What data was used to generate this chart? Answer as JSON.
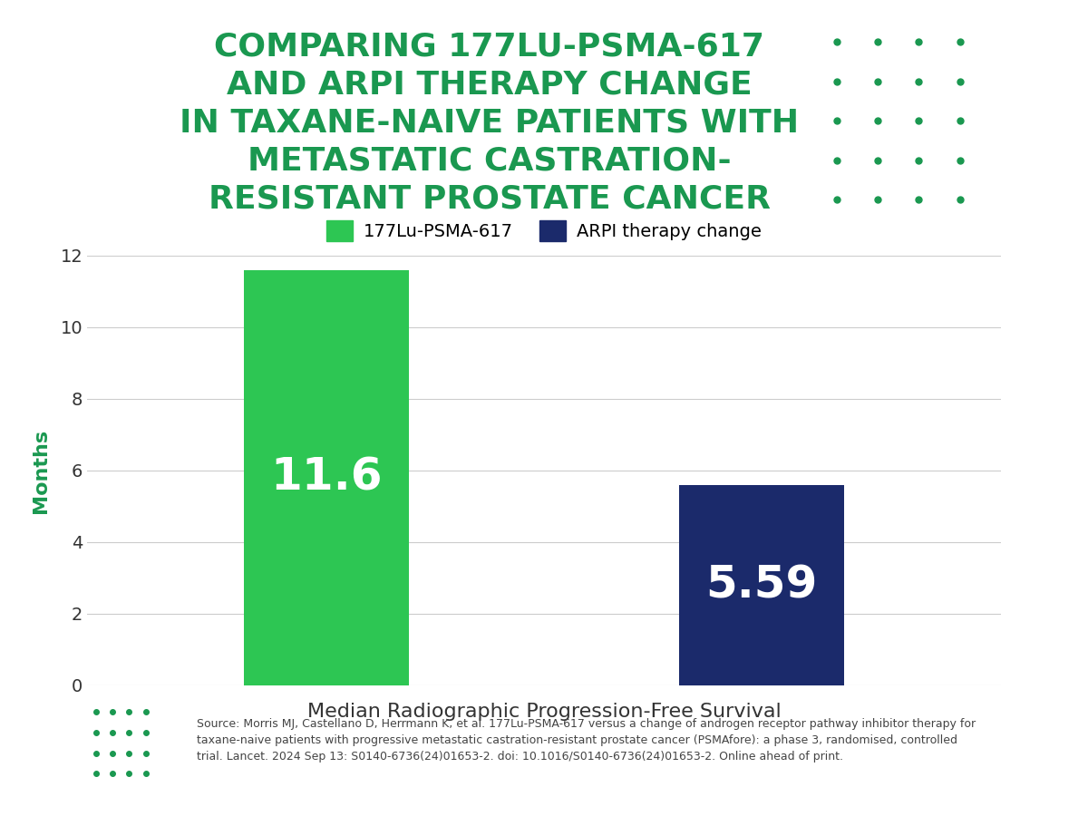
{
  "title_lines": [
    "COMPARING 177LU-PSMA-617",
    "AND ARPI THERAPY CHANGE",
    "IN TAXANE-NAIVE PATIENTS WITH",
    "METASTATIC CASTRATION-",
    "RESISTANT PROSTATE CANCER"
  ],
  "title_color": "#1a9850",
  "bar_categories": [
    "177Lu-PSMA-617",
    "ARPI therapy change"
  ],
  "bar_values": [
    11.6,
    5.59
  ],
  "bar_colors": [
    "#2dc653",
    "#1b2a6b"
  ],
  "bar_labels": [
    "11.6",
    "5.59"
  ],
  "ylabel": "Months",
  "ylabel_color": "#1a9850",
  "xlabel": "Median Radiographic Progression-Free Survival",
  "xlabel_color": "#333333",
  "ylim": [
    0,
    12
  ],
  "yticks": [
    0,
    2,
    4,
    6,
    8,
    10,
    12
  ],
  "legend_labels": [
    "177Lu-PSMA-617",
    "ARPI therapy change"
  ],
  "legend_colors": [
    "#2dc653",
    "#1b2a6b"
  ],
  "dot_color": "#1a9850",
  "source_text": "Source: Morris MJ, Castellano D, Herrmann K, et al. 177Lu-PSMA-617 versus a change of androgen receptor pathway inhibitor therapy for\ntaxane-naive patients with progressive metastatic castration-resistant prostate cancer (PSMAfore): a phase 3, randomised, controlled\ntrial. Lancet. 2024 Sep 13: S0140-6736(24)01653-2. doi: 10.1016/S0140-6736(24)01653-2. Online ahead of print.",
  "bg_color": "#ffffff",
  "bar_label_fontsize": 36,
  "bar_label_color": "#ffffff",
  "title_fontsize": 26,
  "xlabel_fontsize": 16,
  "ylabel_fontsize": 16,
  "tick_fontsize": 14,
  "legend_fontsize": 14,
  "source_fontsize": 9
}
